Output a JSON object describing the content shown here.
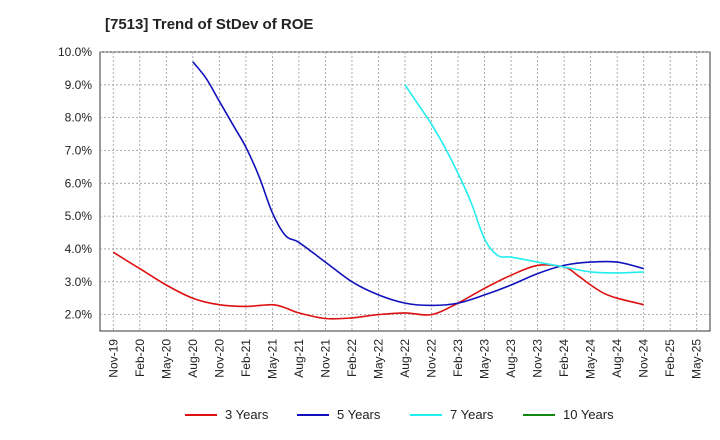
{
  "chart_data": {
    "type": "line",
    "title": "[7513]  Trend of StDev of ROE",
    "xlabel": "",
    "ylabel": "",
    "ylim": [
      1.5,
      10.0
    ],
    "yticks": [
      2.0,
      3.0,
      4.0,
      5.0,
      6.0,
      7.0,
      8.0,
      9.0,
      10.0
    ],
    "ytick_labels": [
      "2.0%",
      "3.0%",
      "4.0%",
      "5.0%",
      "6.0%",
      "7.0%",
      "8.0%",
      "9.0%",
      "10.0%"
    ],
    "x_categories": [
      "Nov-19",
      "Feb-20",
      "May-20",
      "Aug-20",
      "Nov-20",
      "Feb-21",
      "May-21",
      "Aug-21",
      "Nov-21",
      "Feb-22",
      "May-22",
      "Aug-22",
      "Nov-22",
      "Feb-23",
      "May-23",
      "Aug-23",
      "Nov-23",
      "Feb-24",
      "May-24",
      "Aug-24",
      "Nov-24",
      "Feb-25",
      "May-25"
    ],
    "grid": true,
    "legend_position": "bottom",
    "series": [
      {
        "name": "3 Years",
        "color": "#dd1111",
        "points": [
          [
            0,
            3.9
          ],
          [
            1,
            3.4
          ],
          [
            2,
            2.9
          ],
          [
            3,
            2.5
          ],
          [
            4,
            2.3
          ],
          [
            5,
            2.25
          ],
          [
            6,
            2.3
          ],
          [
            6.5,
            2.2
          ],
          [
            7,
            2.05
          ],
          [
            8,
            1.88
          ],
          [
            9,
            1.9
          ],
          [
            10,
            2.0
          ],
          [
            11,
            2.05
          ],
          [
            12,
            2.0
          ],
          [
            13,
            2.35
          ],
          [
            14,
            2.8
          ],
          [
            15,
            3.2
          ],
          [
            16,
            3.5
          ],
          [
            17,
            3.45
          ],
          [
            17.5,
            3.2
          ],
          [
            18,
            2.9
          ],
          [
            18.5,
            2.65
          ],
          [
            19,
            2.5
          ],
          [
            20,
            2.3
          ]
        ]
      },
      {
        "name": "5 Years",
        "color": "#1111bb",
        "points": [
          [
            3,
            9.7
          ],
          [
            3.5,
            9.2
          ],
          [
            4,
            8.5
          ],
          [
            4.5,
            7.8
          ],
          [
            5,
            7.1
          ],
          [
            5.5,
            6.2
          ],
          [
            6,
            5.1
          ],
          [
            6.5,
            4.4
          ],
          [
            7,
            4.2
          ],
          [
            8,
            3.6
          ],
          [
            9,
            3.0
          ],
          [
            10,
            2.6
          ],
          [
            11,
            2.35
          ],
          [
            12,
            2.28
          ],
          [
            13,
            2.35
          ],
          [
            14,
            2.6
          ],
          [
            15,
            2.9
          ],
          [
            16,
            3.25
          ],
          [
            17,
            3.5
          ],
          [
            18,
            3.6
          ],
          [
            19,
            3.6
          ],
          [
            20,
            3.4
          ]
        ]
      },
      {
        "name": "7 Years",
        "color": "#22eeee",
        "points": [
          [
            11,
            9.0
          ],
          [
            11.5,
            8.4
          ],
          [
            12,
            7.8
          ],
          [
            12.5,
            7.1
          ],
          [
            13,
            6.3
          ],
          [
            13.5,
            5.4
          ],
          [
            14,
            4.3
          ],
          [
            14.5,
            3.8
          ],
          [
            15,
            3.75
          ],
          [
            16,
            3.6
          ],
          [
            17,
            3.45
          ],
          [
            18,
            3.3
          ],
          [
            19,
            3.27
          ],
          [
            20,
            3.3
          ]
        ]
      },
      {
        "name": "10 Years",
        "color": "#118811",
        "points": []
      }
    ]
  }
}
